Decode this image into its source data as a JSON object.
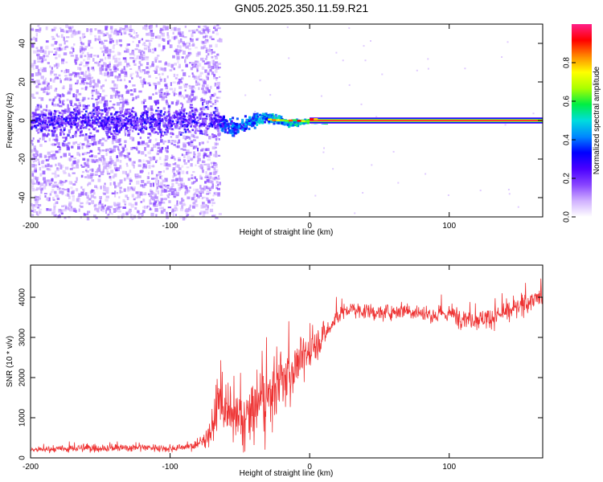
{
  "figure_title": "GN05.2025.350.11.59.R21",
  "colors": {
    "snr_line": "#ee3333",
    "axis": "#000000",
    "colormap": [
      "#ffffff",
      "#d0b0ff",
      "#8844ff",
      "#4a00ff",
      "#0000ff",
      "#0088ff",
      "#00dddd",
      "#00ee44",
      "#aaff00",
      "#ffff00",
      "#ff8800",
      "#ff0000",
      "#ff1f88"
    ]
  },
  "chart_data": [
    {
      "type": "heatmap",
      "title": "",
      "xlabel": "Height of straight line (km)",
      "ylabel": "Frequency (Hz)",
      "xlim": [
        -200,
        167
      ],
      "ylim": [
        -50,
        50
      ],
      "x_ticks": [
        "-200",
        "-100",
        "0",
        "100"
      ],
      "y_ticks": [
        "-40",
        "-20",
        "0",
        "20",
        "40"
      ],
      "grid": false,
      "colorbar": {
        "label": "Normalized spectral amplitude",
        "range": [
          0.0,
          1.0
        ],
        "ticks": [
          "0.0",
          "0.2",
          "0.4",
          "0.6",
          "0.8"
        ]
      },
      "features": {
        "noise_region_x": [
          -200,
          -65
        ],
        "carrier_start_x": -65,
        "carrier_frequency_hz": 0,
        "carrier_lock_x": 0,
        "max_amplitude": 1.0
      }
    },
    {
      "type": "line",
      "title": "",
      "xlabel": "Height of straight line (km)",
      "ylabel": "SNR (10 * v/v)",
      "xlim": [
        -200,
        167
      ],
      "ylim": [
        0,
        4800
      ],
      "x_ticks": [
        "-200",
        "-100",
        "0",
        "100"
      ],
      "y_ticks": [
        "0",
        "1000",
        "2000",
        "3000",
        "4000"
      ],
      "grid": false,
      "series": [
        {
          "name": "SNR",
          "x": [
            -200,
            -180,
            -160,
            -140,
            -120,
            -100,
            -80,
            -70,
            -65,
            -60,
            -55,
            -50,
            -45,
            -40,
            -35,
            -30,
            -25,
            -20,
            -15,
            -10,
            -5,
            0,
            5,
            10,
            15,
            20,
            25,
            30,
            40,
            50,
            60,
            70,
            80,
            90,
            100,
            110,
            120,
            130,
            140,
            150,
            160,
            167
          ],
          "values": [
            200,
            220,
            250,
            240,
            270,
            230,
            320,
            700,
            1500,
            1150,
            950,
            900,
            1000,
            1200,
            1350,
            1500,
            1750,
            1900,
            2100,
            2300,
            2500,
            2650,
            2850,
            3050,
            3250,
            3550,
            3650,
            3700,
            3650,
            3600,
            3650,
            3700,
            3600,
            3550,
            3600,
            3500,
            3450,
            3500,
            3600,
            3750,
            3950,
            4000
          ],
          "noise_amplitude": [
            90,
            110,
            140,
            130,
            130,
            110,
            130,
            500,
            900,
            900,
            900,
            900,
            1000,
            1100,
            1200,
            1200,
            1100,
            1000,
            900,
            800,
            700,
            600,
            500,
            400,
            350,
            300,
            280,
            250,
            250,
            250,
            250,
            280,
            300,
            300,
            320,
            320,
            330,
            330,
            330,
            330,
            330,
            330
          ]
        }
      ]
    }
  ]
}
